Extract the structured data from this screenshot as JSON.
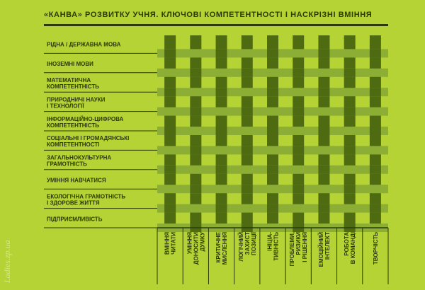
{
  "title": "«КАНВА» РОЗВИТКУ УЧНЯ. КЛЮЧОВІ КОМПЕТЕНТНОСТІ І НАСКРІЗНІ ВМІННЯ",
  "rows": [
    [
      "РІДНА / ДЕРЖАВНА МОВА"
    ],
    [
      "ІНОЗЕМНІ МОВИ"
    ],
    [
      "МАТЕМАТИЧНА",
      "КОМПЕТЕНТНІСТЬ"
    ],
    [
      "ПРИРОДНИЧІ НАУКИ",
      "І ТЕХНОЛОГІЇ"
    ],
    [
      "ІНФОРМАЦІЙНО-ЦИФРОВА",
      "КОМПЕТЕНТНІСТЬ"
    ],
    [
      "СОЦІАЛЬНІ І ГРОМАДЯНСЬКІ",
      "КОМПЕТЕНТНОСТІ"
    ],
    [
      "ЗАГАЛЬНОКУЛЬТУРНА",
      "ГРАМОТНІСТЬ"
    ],
    [
      "УМІННЯ НАВЧАТИСЯ"
    ],
    [
      "ЕКОЛОГІЧНА ГРАМОТНІСТЬ",
      "І ЗДОРОВЕ ЖИТТЯ"
    ],
    [
      "ПІДПРИЄМЛИВІСТЬ"
    ]
  ],
  "columns": [
    [
      "ВМІННЯ",
      "ЧИТАТИ"
    ],
    [
      "УМІННЯ",
      "ДОНОСИТИ",
      "ДУМКУ"
    ],
    [
      "КРИТИЧНЕ",
      "МИСЛЕННЯ"
    ],
    [
      "ЛОГІЧНИЙ",
      "ЗАХИСТ",
      "ПОЗИЦІЇ"
    ],
    [
      "ІНІЦІА-",
      "ТИВНІСТЬ"
    ],
    [
      "ПРОБЛЕМИ,",
      "РИЗИКИ",
      "І РІШЕННЯ"
    ],
    [
      "ЕМОЦІЙНИЙ",
      "ІНТЕЛЕКТ"
    ],
    [
      "РОБОТА",
      "В КОМАНДІ"
    ],
    [
      "ТВОРЧІСТЬ"
    ]
  ],
  "watermark": "Ladies.zp.ua"
}
